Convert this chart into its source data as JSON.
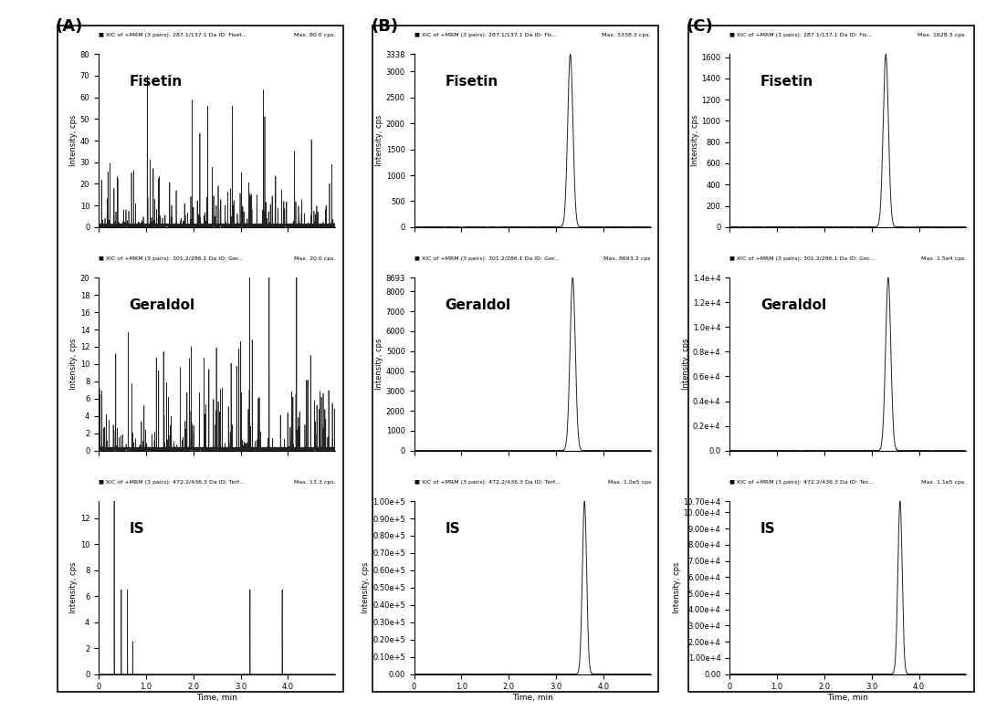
{
  "panel_labels": [
    "(A)",
    "(B)",
    "(C)"
  ],
  "compound_labels": [
    "Fisetin",
    "Geraldol",
    "IS"
  ],
  "header_texts": {
    "A_fis": "XIC of +MRM (3 pairs): 287.1/137.1 Da ID: Fiset...",
    "A_ger": "XIC of +MRM (3 pairs): 301.2/286.1 Da ID: Ger...",
    "A_IS": "XIC of +MRM (3 pairs): 472.2/436.3 Da ID: Terf...",
    "B_fis": "XIC of +MRM (3 pairs): 287.1/137.1 Da ID: Fis...",
    "B_ger": "XIC of +MRM (3 pairs): 301.2/286.1 Da ID: Ger...",
    "B_IS": "XIC of +MRM (3 pairs): 472.2/436.3 Da ID: Terf...",
    "C_fis": "XIC of +MRM (3 pairs): 287.1/137.1 Da ID: Fis...",
    "C_ger": "XIC of +MRM (3 pairs): 301.2/286.1 Da ID: Ger...",
    "C_IS": "XIC of +MRM (3 pairs): 472.2/436.3 Da ID: Ter..."
  },
  "max_texts": {
    "A_fis": "Max. 80.0 cps.",
    "A_ger": "Max. 20.0 cps.",
    "A_IS": "Max. 13.3 cps.",
    "B_fis": "Max. 3338.3 cps.",
    "B_ger": "Max. 8693.3 cps",
    "B_IS": "Max. 1.0e5 cps",
    "C_fis": "Max. 1628.3 cps.",
    "C_ger": "Max. 1.5e4 cps.",
    "C_IS": "Max. 1.1e5 cps."
  },
  "bg_color": "#ffffff",
  "line_color": "#222222",
  "box_color": "#000000"
}
